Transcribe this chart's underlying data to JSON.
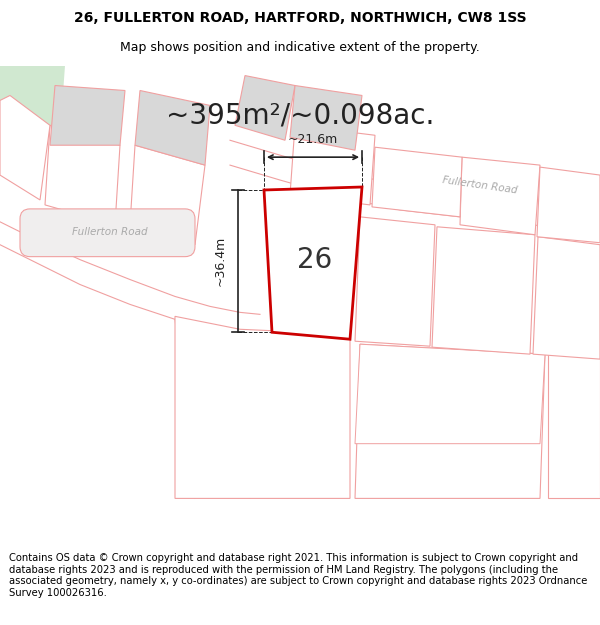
{
  "title": "26, FULLERTON ROAD, HARTFORD, NORTHWICH, CW8 1SS",
  "subtitle": "Map shows position and indicative extent of the property.",
  "area_text": "~395m²/~0.098ac.",
  "label_26": "26",
  "dim_width": "~21.6m",
  "dim_height": "~36.4m",
  "footer": "Contains OS data © Crown copyright and database right 2021. This information is subject to Crown copyright and database rights 2023 and is reproduced with the permission of HM Land Registry. The polygons (including the associated geometry, namely x, y co-ordinates) are subject to Crown copyright and database rights 2023 Ordnance Survey 100026316.",
  "bg_color": "#ffffff",
  "map_bg": "#ffffff",
  "highlight_color": "#cc0000",
  "plot_edge": "#f0a0a0",
  "road_edge": "#f0a0a0",
  "road_fill": "#f5f0f0",
  "green_fill": "#d0e8d0",
  "gray_fill": "#d8d8d8",
  "title_fontsize": 10,
  "subtitle_fontsize": 9,
  "area_fontsize": 20,
  "label_fontsize": 20,
  "dim_fontsize": 9,
  "footer_fontsize": 7.2
}
